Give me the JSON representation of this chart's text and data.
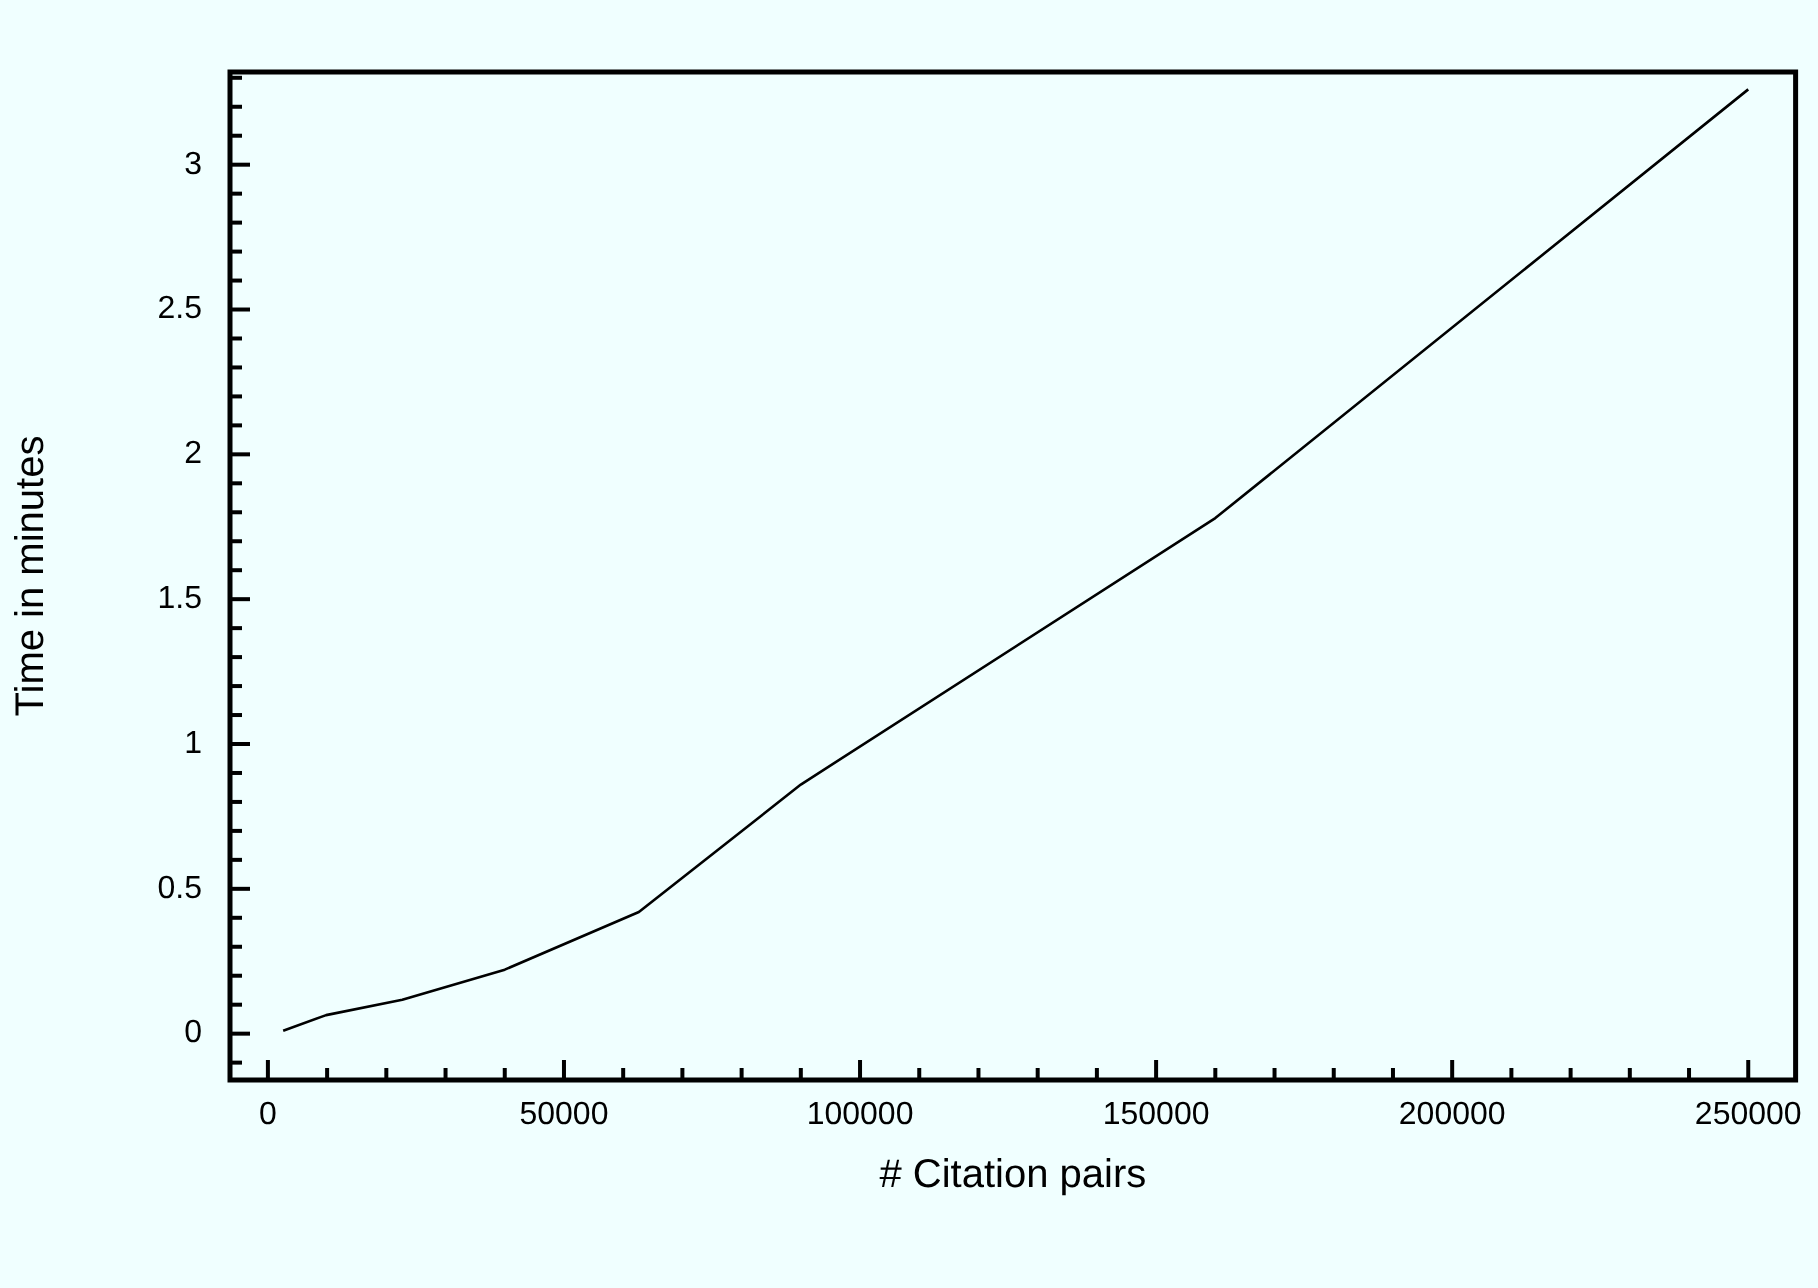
{
  "chart_data": {
    "type": "line",
    "xlabel": "# Citation pairs",
    "ylabel": "Time in minutes",
    "x": [
      2580,
      9830,
      22700,
      40000,
      62650,
      90000,
      160000,
      250000
    ],
    "series": [
      {
        "color": "#000000",
        "values": [
          0.01,
          0.064,
          0.117,
          0.221,
          0.42,
          0.86,
          1.78,
          3.26
        ]
      }
    ],
    "xlim": [
      -6400,
      258000
    ],
    "ylim": [
      -0.16,
      3.32
    ],
    "xticks": [
      0,
      {
        "value": 10000,
        "label": null
      },
      {
        "value": 20000,
        "label": null
      },
      {
        "value": 30000,
        "label": null
      },
      {
        "value": 40000,
        "label": null
      },
      50000,
      {
        "value": 60000,
        "label": null
      },
      {
        "value": 70000,
        "label": null
      },
      {
        "value": 80000,
        "label": null
      },
      {
        "value": 90000,
        "label": null
      },
      100000,
      {
        "value": 110000,
        "label": null
      },
      {
        "value": 120000,
        "label": null
      },
      {
        "value": 130000,
        "label": null
      },
      {
        "value": 140000,
        "label": null
      },
      150000,
      {
        "value": 160000,
        "label": null
      },
      {
        "value": 170000,
        "label": null
      },
      {
        "value": 180000,
        "label": null
      },
      {
        "value": 190000,
        "label": null
      },
      200000,
      {
        "value": 210000,
        "label": null
      },
      {
        "value": 220000,
        "label": null
      },
      {
        "value": 230000,
        "label": null
      },
      {
        "value": 240000,
        "label": null
      },
      250000
    ],
    "yticks": [
      {
        "value": -0.1,
        "label": null
      },
      0,
      {
        "value": 0.1,
        "label": null
      },
      {
        "value": 0.2,
        "label": null
      },
      {
        "value": 0.3,
        "label": null
      },
      {
        "value": 0.4,
        "label": null
      },
      0.5,
      {
        "value": 0.6,
        "label": null
      },
      {
        "value": 0.7,
        "label": null
      },
      {
        "value": 0.8,
        "label": null
      },
      {
        "value": 0.9,
        "label": null
      },
      1,
      {
        "value": 1.1,
        "label": null
      },
      {
        "value": 1.2,
        "label": null
      },
      {
        "value": 1.3,
        "label": null
      },
      {
        "value": 1.4,
        "label": null
      },
      1.5,
      {
        "value": 1.6,
        "label": null
      },
      {
        "value": 1.7,
        "label": null
      },
      {
        "value": 1.8,
        "label": null
      },
      {
        "value": 1.9,
        "label": null
      },
      2,
      {
        "value": 2.1,
        "label": null
      },
      {
        "value": 2.2,
        "label": null
      },
      {
        "value": 2.3,
        "label": null
      },
      {
        "value": 2.4,
        "label": null
      },
      2.5,
      {
        "value": 2.6,
        "label": null
      },
      {
        "value": 2.7,
        "label": null
      },
      {
        "value": 2.8,
        "label": null
      },
      {
        "value": 2.9,
        "label": null
      },
      3,
      {
        "value": 3.1,
        "label": null
      },
      {
        "value": 3.2,
        "label": null
      },
      {
        "value": 3.3,
        "label": null
      }
    ],
    "grid": false,
    "legend": false,
    "marker": "none",
    "line_style": "solid"
  }
}
